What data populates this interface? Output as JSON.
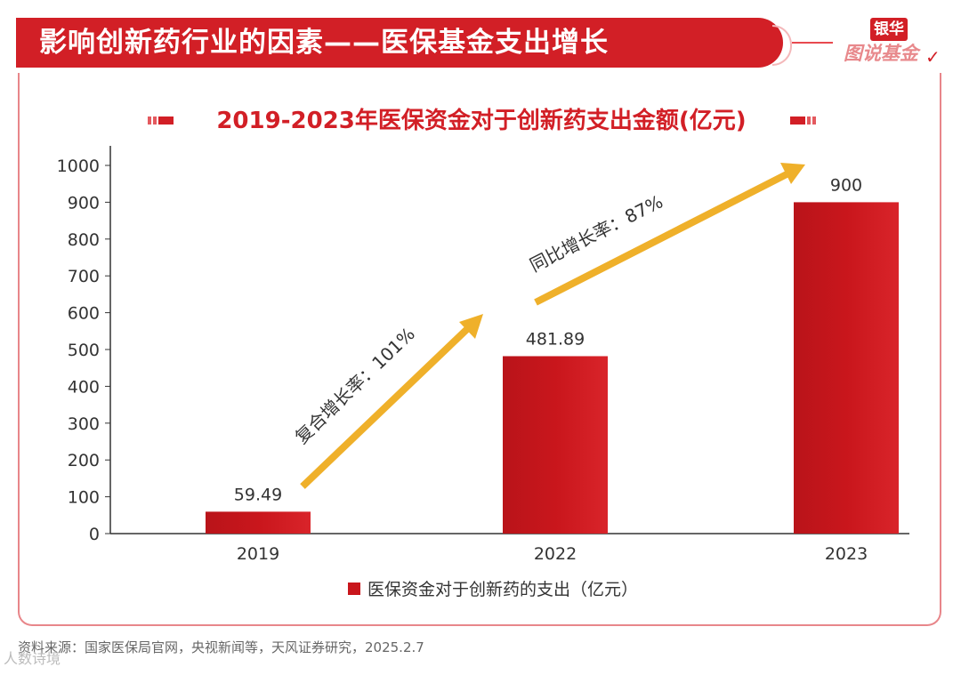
{
  "header": {
    "title": "影响创新药行业的因素——医保基金支出增长",
    "logo_top": "银华",
    "logo_bottom": "图说基金"
  },
  "chart_data": {
    "type": "bar",
    "title": "2019-2023年医保资金对于创新药支出金额(亿元)",
    "categories": [
      "2019",
      "2022",
      "2023"
    ],
    "series": [
      {
        "name": "医保资金对于创新药的支出（亿元）",
        "values": [
          59.49,
          481.89,
          900
        ]
      }
    ],
    "value_labels": [
      "59.49",
      "481.89",
      "900"
    ],
    "yticks": [
      0,
      100,
      200,
      300,
      400,
      500,
      600,
      700,
      800,
      900,
      1000
    ],
    "ylim": [
      0,
      1000
    ],
    "xlabel": "",
    "ylabel": "",
    "grid": false,
    "legend_position": "bottom-center",
    "annotations": [
      {
        "text": "复合增长率：101%"
      },
      {
        "text": "同比增长率：87%"
      }
    ]
  },
  "source": "资料来源：国家医保局官网，央视新闻等，天风证券研究，2025.2.7",
  "watermark": "人数诗境",
  "colors": {
    "brand": "#d21f26",
    "bar": "#c9161c",
    "arrow": "#efb02a",
    "text": "#333333"
  }
}
